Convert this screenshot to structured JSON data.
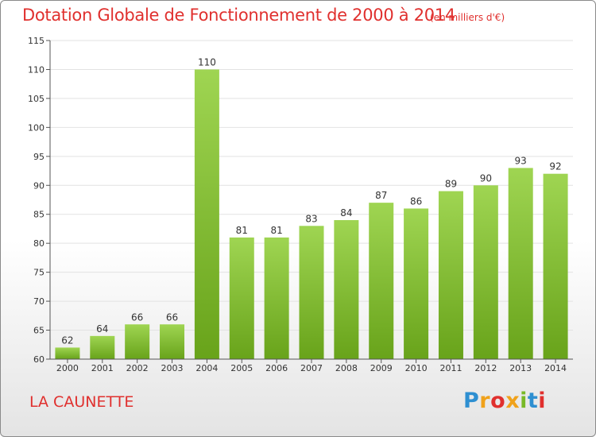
{
  "title": "Dotation Globale de Fonctionnement de 2000 à 2014",
  "unit_note": "(en milliers d'€)",
  "commune": "LA CAUNETTE",
  "logo": {
    "text": "Proxiti",
    "letters": [
      "P",
      "r",
      "o",
      "x",
      "i",
      "t",
      "i"
    ],
    "colors": [
      "#2e8fd1",
      "#f0a21b",
      "#e0302e",
      "#f0a21b",
      "#79b928",
      "#2e8fd1",
      "#e0302e"
    ]
  },
  "colors": {
    "title": "#e0302e",
    "bar_light": "#9fd552",
    "bar_dark": "#68a31a",
    "axis": "#555555",
    "grid": "#e2e2e2"
  },
  "chart_data": {
    "type": "bar",
    "categories": [
      "2000",
      "2001",
      "2002",
      "2003",
      "2004",
      "2005",
      "2006",
      "2007",
      "2008",
      "2009",
      "2010",
      "2011",
      "2012",
      "2013",
      "2014"
    ],
    "values": [
      62,
      64,
      66,
      66,
      110,
      81,
      81,
      83,
      84,
      87,
      86,
      89,
      90,
      93,
      92
    ],
    "ylim": [
      60,
      115
    ],
    "yticks": [
      60,
      65,
      70,
      75,
      80,
      85,
      90,
      95,
      100,
      105,
      110,
      115
    ],
    "grid": "horizontal",
    "data_labels": true
  }
}
